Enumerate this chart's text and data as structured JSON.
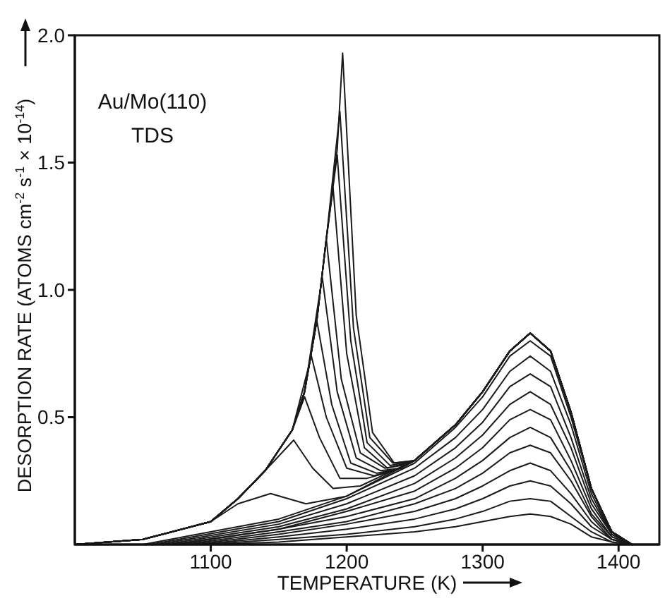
{
  "chart_data": {
    "type": "line",
    "xlabel": "TEMPERATURE (K)",
    "ylabel": "DESORPTION RATE (ATOMS cm$^{-2}$ s$^{-1}$ × 10$^{-14}$)",
    "annotations": [
      "Au/Mo(110)",
      "TDS"
    ],
    "xlim": [
      1000,
      1430
    ],
    "xticks": [
      1100,
      1200,
      1300,
      1400
    ],
    "ylim": [
      0,
      2.0
    ],
    "yticks": [
      {
        "value": 0.5,
        "label": "0.5"
      },
      {
        "value": 1.0,
        "label": "1.0"
      },
      {
        "value": 1.5,
        "label": "1.5"
      },
      {
        "value": 2.0,
        "label": "2.0"
      }
    ],
    "grid": false,
    "marker": "none",
    "line_style": "solid",
    "series": [
      {
        "color": "#1a1a1a",
        "x": [
          1100,
          1150,
          1200,
          1250,
          1280,
          1300,
          1320,
          1335,
          1350,
          1365,
          1380,
          1395,
          1410
        ],
        "values": [
          0,
          0.01,
          0.03,
          0.05,
          0.07,
          0.09,
          0.11,
          0.12,
          0.11,
          0.08,
          0.03,
          0.01,
          0
        ]
      },
      {
        "color": "#1a1a1a",
        "x": [
          1095,
          1150,
          1200,
          1250,
          1280,
          1300,
          1320,
          1335,
          1350,
          1365,
          1380,
          1395,
          1410
        ],
        "values": [
          0,
          0.02,
          0.04,
          0.07,
          0.1,
          0.13,
          0.17,
          0.18,
          0.17,
          0.11,
          0.05,
          0.01,
          0
        ]
      },
      {
        "color": "#1a1a1a",
        "x": [
          1090,
          1150,
          1200,
          1250,
          1280,
          1300,
          1320,
          1335,
          1350,
          1365,
          1380,
          1395,
          1410
        ],
        "values": [
          0,
          0.03,
          0.06,
          0.1,
          0.14,
          0.18,
          0.23,
          0.25,
          0.23,
          0.16,
          0.07,
          0.02,
          0
        ]
      },
      {
        "color": "#1a1a1a",
        "x": [
          1085,
          1150,
          1200,
          1250,
          1280,
          1300,
          1320,
          1335,
          1350,
          1365,
          1380,
          1395,
          1410
        ],
        "values": [
          0,
          0.04,
          0.08,
          0.13,
          0.18,
          0.23,
          0.29,
          0.32,
          0.29,
          0.2,
          0.09,
          0.02,
          0
        ]
      },
      {
        "color": "#1a1a1a",
        "x": [
          1080,
          1150,
          1200,
          1250,
          1280,
          1300,
          1320,
          1335,
          1350,
          1365,
          1380,
          1395,
          1410
        ],
        "values": [
          0,
          0.05,
          0.09,
          0.16,
          0.22,
          0.28,
          0.36,
          0.39,
          0.36,
          0.25,
          0.11,
          0.02,
          0
        ]
      },
      {
        "color": "#1a1a1a",
        "x": [
          1075,
          1150,
          1200,
          1250,
          1280,
          1300,
          1320,
          1335,
          1350,
          1365,
          1380,
          1395,
          1410
        ],
        "values": [
          0,
          0.06,
          0.11,
          0.18,
          0.26,
          0.33,
          0.42,
          0.46,
          0.42,
          0.29,
          0.12,
          0.03,
          0
        ]
      },
      {
        "color": "#1a1a1a",
        "x": [
          1070,
          1150,
          1200,
          1250,
          1280,
          1300,
          1320,
          1335,
          1350,
          1365,
          1380,
          1395,
          1410
        ],
        "values": [
          0,
          0.06,
          0.13,
          0.21,
          0.3,
          0.38,
          0.49,
          0.53,
          0.49,
          0.33,
          0.14,
          0.03,
          0
        ]
      },
      {
        "color": "#1a1a1a",
        "x": [
          1065,
          1150,
          1200,
          1250,
          1280,
          1300,
          1320,
          1335,
          1350,
          1365,
          1380,
          1395,
          1410
        ],
        "values": [
          0,
          0.07,
          0.14,
          0.24,
          0.34,
          0.43,
          0.55,
          0.6,
          0.55,
          0.38,
          0.16,
          0.04,
          0
        ]
      },
      {
        "color": "#1a1a1a",
        "x": [
          1060,
          1150,
          1200,
          1250,
          1280,
          1300,
          1320,
          1335,
          1350,
          1365,
          1380,
          1395,
          1410
        ],
        "values": [
          0,
          0.08,
          0.16,
          0.27,
          0.38,
          0.48,
          0.62,
          0.67,
          0.62,
          0.42,
          0.18,
          0.04,
          0
        ]
      },
      {
        "color": "#1a1a1a",
        "x": [
          1055,
          1150,
          1200,
          1250,
          1280,
          1300,
          1320,
          1335,
          1350,
          1365,
          1380,
          1395,
          1410
        ],
        "values": [
          0,
          0.09,
          0.18,
          0.3,
          0.42,
          0.53,
          0.68,
          0.74,
          0.68,
          0.47,
          0.2,
          0.04,
          0
        ]
      },
      {
        "color": "#1a1a1a",
        "x": [
          1050,
          1150,
          1200,
          1250,
          1280,
          1300,
          1320,
          1335,
          1350,
          1365,
          1380,
          1395,
          1410
        ],
        "values": [
          0,
          0.1,
          0.19,
          0.32,
          0.46,
          0.58,
          0.74,
          0.8,
          0.74,
          0.5,
          0.22,
          0.05,
          0
        ]
      },
      {
        "color": "#1a1a1a",
        "x": [
          1000,
          1050,
          1100,
          1120,
          1144,
          1170,
          1200,
          1225,
          1250,
          1280,
          1300,
          1320,
          1335,
          1350,
          1365,
          1380,
          1395,
          1410
        ],
        "values": [
          0,
          0.02,
          0.09,
          0.16,
          0.2,
          0.16,
          0.19,
          0.26,
          0.33,
          0.47,
          0.6,
          0.76,
          0.83,
          0.76,
          0.52,
          0.22,
          0.05,
          0
        ]
      },
      {
        "color": "#1a1a1a",
        "x": [
          1000,
          1050,
          1100,
          1120,
          1140,
          1161,
          1175,
          1190,
          1210,
          1230,
          1250,
          1280,
          1300,
          1320,
          1335,
          1350,
          1365,
          1380,
          1395,
          1410
        ],
        "values": [
          0,
          0.02,
          0.09,
          0.18,
          0.29,
          0.41,
          0.3,
          0.22,
          0.23,
          0.28,
          0.33,
          0.47,
          0.6,
          0.76,
          0.83,
          0.76,
          0.52,
          0.22,
          0.05,
          0
        ]
      },
      {
        "color": "#1a1a1a",
        "x": [
          1000,
          1050,
          1100,
          1120,
          1140,
          1160,
          1169,
          1180,
          1195,
          1215,
          1235,
          1250,
          1280,
          1300,
          1320,
          1335,
          1350,
          1365,
          1380,
          1395,
          1410
        ],
        "values": [
          0,
          0.02,
          0.09,
          0.18,
          0.29,
          0.45,
          0.58,
          0.42,
          0.26,
          0.26,
          0.29,
          0.33,
          0.47,
          0.6,
          0.76,
          0.83,
          0.76,
          0.52,
          0.22,
          0.05,
          0
        ]
      },
      {
        "color": "#1a1a1a",
        "x": [
          1000,
          1050,
          1100,
          1120,
          1140,
          1160,
          1174,
          1185,
          1200,
          1220,
          1240,
          1250,
          1280,
          1300,
          1320,
          1335,
          1350,
          1365,
          1380,
          1395,
          1410
        ],
        "values": [
          0,
          0.02,
          0.09,
          0.18,
          0.29,
          0.45,
          0.74,
          0.5,
          0.3,
          0.27,
          0.3,
          0.33,
          0.47,
          0.6,
          0.76,
          0.83,
          0.76,
          0.52,
          0.22,
          0.05,
          0
        ]
      },
      {
        "color": "#1a1a1a",
        "x": [
          1000,
          1050,
          1100,
          1120,
          1140,
          1160,
          1169,
          1178,
          1189,
          1203,
          1222,
          1240,
          1250,
          1280,
          1300,
          1320,
          1335,
          1350,
          1365,
          1380,
          1395,
          1410
        ],
        "values": [
          0,
          0.02,
          0.09,
          0.18,
          0.29,
          0.45,
          0.6,
          0.88,
          0.55,
          0.32,
          0.28,
          0.3,
          0.33,
          0.47,
          0.6,
          0.76,
          0.83,
          0.76,
          0.52,
          0.22,
          0.05,
          0
        ]
      },
      {
        "color": "#1a1a1a",
        "x": [
          1000,
          1050,
          1100,
          1120,
          1140,
          1160,
          1169,
          1182,
          1193,
          1207,
          1225,
          1240,
          1250,
          1280,
          1300,
          1320,
          1335,
          1350,
          1365,
          1380,
          1395,
          1410
        ],
        "values": [
          0,
          0.02,
          0.09,
          0.18,
          0.29,
          0.45,
          0.6,
          1.05,
          0.6,
          0.34,
          0.29,
          0.3,
          0.33,
          0.47,
          0.6,
          0.76,
          0.83,
          0.76,
          0.52,
          0.22,
          0.05,
          0
        ]
      },
      {
        "color": "#1a1a1a",
        "x": [
          1000,
          1050,
          1100,
          1120,
          1140,
          1160,
          1169,
          1178,
          1185,
          1196,
          1210,
          1228,
          1240,
          1250,
          1280,
          1300,
          1320,
          1335,
          1350,
          1365,
          1380,
          1395,
          1410
        ],
        "values": [
          0,
          0.02,
          0.09,
          0.18,
          0.29,
          0.45,
          0.6,
          0.88,
          1.2,
          0.65,
          0.36,
          0.3,
          0.31,
          0.33,
          0.47,
          0.6,
          0.76,
          0.83,
          0.76,
          0.52,
          0.22,
          0.05,
          0
        ]
      },
      {
        "color": "#1a1a1a",
        "x": [
          1000,
          1050,
          1100,
          1120,
          1140,
          1160,
          1169,
          1178,
          1185,
          1190,
          1200,
          1213,
          1230,
          1250,
          1280,
          1300,
          1320,
          1335,
          1350,
          1365,
          1380,
          1395,
          1410
        ],
        "values": [
          0,
          0.02,
          0.09,
          0.18,
          0.29,
          0.45,
          0.6,
          0.88,
          1.2,
          1.4,
          0.75,
          0.38,
          0.3,
          0.33,
          0.47,
          0.6,
          0.76,
          0.83,
          0.76,
          0.52,
          0.22,
          0.05,
          0
        ]
      },
      {
        "color": "#1a1a1a",
        "x": [
          1000,
          1050,
          1100,
          1120,
          1140,
          1160,
          1169,
          1178,
          1185,
          1193,
          1203,
          1215,
          1232,
          1250,
          1280,
          1300,
          1320,
          1335,
          1350,
          1365,
          1380,
          1395,
          1410
        ],
        "values": [
          0,
          0.02,
          0.09,
          0.18,
          0.29,
          0.45,
          0.6,
          0.88,
          1.2,
          1.53,
          0.8,
          0.4,
          0.31,
          0.33,
          0.47,
          0.6,
          0.76,
          0.83,
          0.76,
          0.52,
          0.22,
          0.05,
          0
        ]
      },
      {
        "color": "#1a1a1a",
        "x": [
          1000,
          1050,
          1100,
          1120,
          1140,
          1160,
          1169,
          1178,
          1185,
          1195,
          1205,
          1217,
          1234,
          1250,
          1280,
          1300,
          1320,
          1335,
          1350,
          1365,
          1380,
          1395,
          1410
        ],
        "values": [
          0,
          0.02,
          0.09,
          0.18,
          0.29,
          0.45,
          0.6,
          0.88,
          1.2,
          1.7,
          0.85,
          0.42,
          0.32,
          0.33,
          0.47,
          0.6,
          0.76,
          0.83,
          0.76,
          0.52,
          0.22,
          0.05,
          0
        ]
      },
      {
        "color": "#1a1a1a",
        "x": [
          1000,
          1050,
          1100,
          1120,
          1140,
          1160,
          1169,
          1178,
          1185,
          1193,
          1197,
          1207,
          1219,
          1235,
          1250,
          1280,
          1300,
          1320,
          1335,
          1350,
          1365,
          1380,
          1395,
          1410
        ],
        "values": [
          0,
          0.02,
          0.09,
          0.18,
          0.29,
          0.45,
          0.6,
          0.88,
          1.2,
          1.55,
          1.93,
          0.9,
          0.44,
          0.32,
          0.33,
          0.47,
          0.6,
          0.76,
          0.83,
          0.76,
          0.52,
          0.22,
          0.05,
          0
        ]
      }
    ]
  }
}
